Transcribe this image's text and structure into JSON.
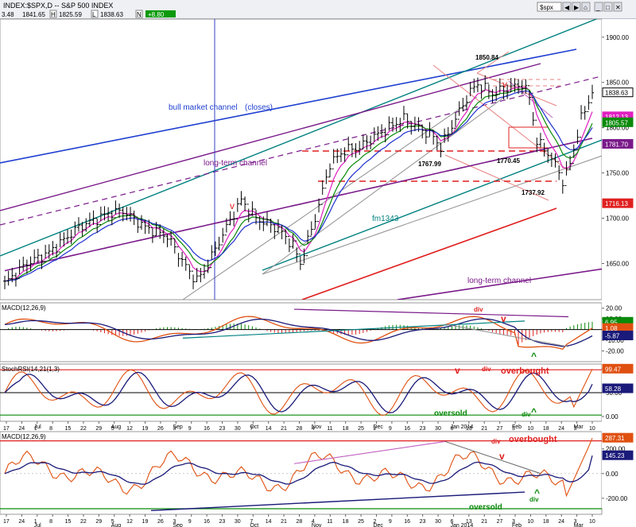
{
  "header": {
    "title": "INDEX:$SPX,D -- S&P 500 INDEX",
    "symbol_input": "$spx",
    "ohlc": [
      "3.48",
      "1841.65",
      "H",
      "1825.59",
      "L",
      "1838.63",
      "N",
      "+8.80"
    ]
  },
  "chart_data": {
    "type": "candlestick-with-indicators",
    "colors": {
      "bull_channel": "#1f3fd0",
      "long_term": "#7a1a8a",
      "fm1343": "#008080",
      "red_trend": "#e02020",
      "ma_green": "#0a8a0a",
      "ma_magenta": "#e020c0",
      "ma_blue": "#2030d0",
      "macd_orange": "#e05010",
      "macd_navy": "#1a1a7a"
    },
    "price": {
      "ylim": [
        1610,
        1920
      ],
      "y_ticks": [
        "1900.00",
        "1850.00",
        "1800.00",
        "1750.00",
        "1700.00",
        "1650.00"
      ],
      "y_tick_values": [
        1900,
        1850,
        1800,
        1750,
        1700,
        1650
      ],
      "right_labels": [
        {
          "text": "1838.63",
          "value": 1838.63,
          "color": "#000000"
        },
        {
          "text": "1812.13",
          "value": 1812.13,
          "color": "#e020c0"
        },
        {
          "text": "1805.57",
          "value": 1805.57,
          "color": "#0a8a0a"
        },
        {
          "text": "1781.70",
          "value": 1781.7,
          "color": "#7a1a8a"
        },
        {
          "text": "1716.13",
          "value": 1716.13,
          "color": "#e02020"
        }
      ],
      "annotations": [
        {
          "text": "bull market channel",
          "color": "#1f3fd0"
        },
        {
          "text": "(closes)",
          "color": "#1f3fd0"
        },
        {
          "text": "long-term channel",
          "color": "#7a1a8a"
        },
        {
          "text": "long-term channel",
          "color": "#7a1a8a"
        },
        {
          "text": "fm1343",
          "color": "#008080"
        },
        {
          "text": "1850.84",
          "color": "#000000"
        },
        {
          "text": "1767.99",
          "color": "#000000"
        },
        {
          "text": "1770.45",
          "color": "#000000"
        },
        {
          "text": "1737.92",
          "color": "#000000"
        },
        {
          "text": "v",
          "color": "#e02020"
        },
        {
          "text": "v",
          "color": "#e02020"
        }
      ]
    },
    "macd": {
      "label": "MACD(12,26,9)",
      "ylim": [
        -30,
        25
      ],
      "y_ticks": [
        "20.00",
        "10.00",
        "0.00",
        "-10.00",
        "-20.00"
      ],
      "y_tick_values": [
        20,
        10,
        0,
        -10,
        -20
      ],
      "right_labels": [
        {
          "text": "6.95",
          "value": 6.95,
          "color": "#0a8a0a"
        },
        {
          "text": "1.08",
          "value": 1.08,
          "color": "#e05010"
        },
        {
          "text": "-5.87",
          "value": -5.87,
          "color": "#1a1a7a"
        }
      ],
      "annotations": [
        {
          "text": "div",
          "color": "#e02020"
        },
        {
          "text": "v",
          "color": "#e02020"
        },
        {
          "text": "^",
          "color": "#0a8a0a"
        }
      ]
    },
    "stochrsi": {
      "label": "StochRSI(14,21(1,3)",
      "ylim": [
        -10,
        110
      ],
      "y_ticks": [
        "100.00",
        "50.00",
        "0.00"
      ],
      "y_tick_values": [
        100,
        50,
        0
      ],
      "right_labels": [
        {
          "text": "99.47",
          "value": 99.47,
          "color": "#e05010"
        },
        {
          "text": "58.28",
          "value": 58.28,
          "color": "#1a1a7a"
        }
      ],
      "annotations": [
        {
          "text": "oversold",
          "color": "#0a8a0a"
        },
        {
          "text": "overbought",
          "color": "#e02020"
        },
        {
          "text": "div",
          "color": "#e02020"
        },
        {
          "text": "v",
          "color": "#e02020"
        },
        {
          "text": "div",
          "color": "#0a8a0a"
        },
        {
          "text": "^",
          "color": "#0a8a0a"
        }
      ]
    },
    "macd2": {
      "label": "MACD(12,26,9)",
      "ylim": [
        -330,
        340
      ],
      "y_ticks": [
        "200.00",
        "0.00",
        "-200.00"
      ],
      "y_tick_values": [
        200,
        0,
        -200
      ],
      "right_labels": [
        {
          "text": "287.31",
          "value": 287.31,
          "color": "#e05010"
        },
        {
          "text": "145.23",
          "value": 145.23,
          "color": "#1a1a7a"
        }
      ],
      "annotations": [
        {
          "text": "div",
          "color": "#e02020"
        },
        {
          "text": "overbought",
          "color": "#e02020"
        },
        {
          "text": "v",
          "color": "#e02020"
        },
        {
          "text": "oversold",
          "color": "#0a8a0a"
        },
        {
          "text": "div",
          "color": "#0a8a0a"
        },
        {
          "text": "^",
          "color": "#0a8a0a"
        }
      ]
    },
    "x_day_ticks": [
      "17",
      "24",
      "1",
      "8",
      "15",
      "22",
      "29",
      "5",
      "12",
      "19",
      "26",
      "3",
      "9",
      "16",
      "23",
      "30",
      "7",
      "14",
      "21",
      "28",
      "4",
      "11",
      "18",
      "25",
      "2",
      "9",
      "16",
      "23",
      "30",
      "6",
      "13",
      "21",
      "27",
      "3",
      "10",
      "18",
      "24",
      "3",
      "10"
    ],
    "x_month_labels": [
      "Jul",
      "Aug",
      "Sep",
      "Oct",
      "Nov",
      "Dec",
      "Jan 2014",
      "Feb",
      "Mar"
    ]
  }
}
